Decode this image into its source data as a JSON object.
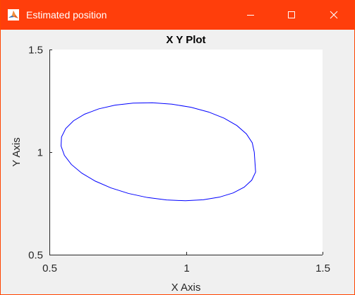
{
  "window": {
    "title": "Estimated position",
    "accent_color": "#ff3e0b",
    "icon": "matlab-membrane-icon",
    "controls": {
      "minimize_icon": "minimize-icon",
      "maximize_icon": "maximize-icon",
      "close_icon": "close-icon"
    }
  },
  "chart_data": {
    "type": "line",
    "title": "X Y Plot",
    "xlabel": "X Axis",
    "ylabel": "Y Axis",
    "xlim": [
      0.5,
      1.5
    ],
    "ylim": [
      0.5,
      1.5
    ],
    "xticks": [
      0.5,
      1,
      1.5
    ],
    "yticks": [
      0.5,
      1,
      1.5
    ],
    "xtick_labels": [
      "0.5",
      "1",
      "1.5"
    ],
    "ytick_labels": [
      "0.5",
      "1",
      "1.5"
    ],
    "grid": false,
    "series": [
      {
        "color": "#0000ff",
        "x": [
          1.25,
          1.2427,
          1.2212,
          1.1863,
          1.1396,
          1.0828,
          1.0183,
          0.9487,
          0.8771,
          0.8067,
          0.7403,
          0.6803,
          0.629,
          0.5883,
          0.5598,
          0.5443,
          0.5427,
          0.5548,
          0.5804,
          0.6184,
          0.6672,
          0.725,
          0.7895,
          0.8583,
          0.9287,
          0.9979,
          1.0634,
          1.1224,
          1.1731,
          1.2131,
          1.2409,
          1.255
        ],
        "y": [
          1.0,
          1.0453,
          1.089,
          1.1295,
          1.1654,
          1.1954,
          1.2184,
          1.2337,
          1.2406,
          1.2389,
          1.2288,
          1.2106,
          1.1849,
          1.1527,
          1.1151,
          1.0735,
          1.0294,
          0.9843,
          0.9398,
          0.8975,
          0.859,
          0.8256,
          0.7985,
          0.7787,
          0.7667,
          0.7629,
          0.7675,
          0.7804,
          0.8011,
          0.8291,
          0.8633,
          0.9028
        ]
      }
    ]
  }
}
